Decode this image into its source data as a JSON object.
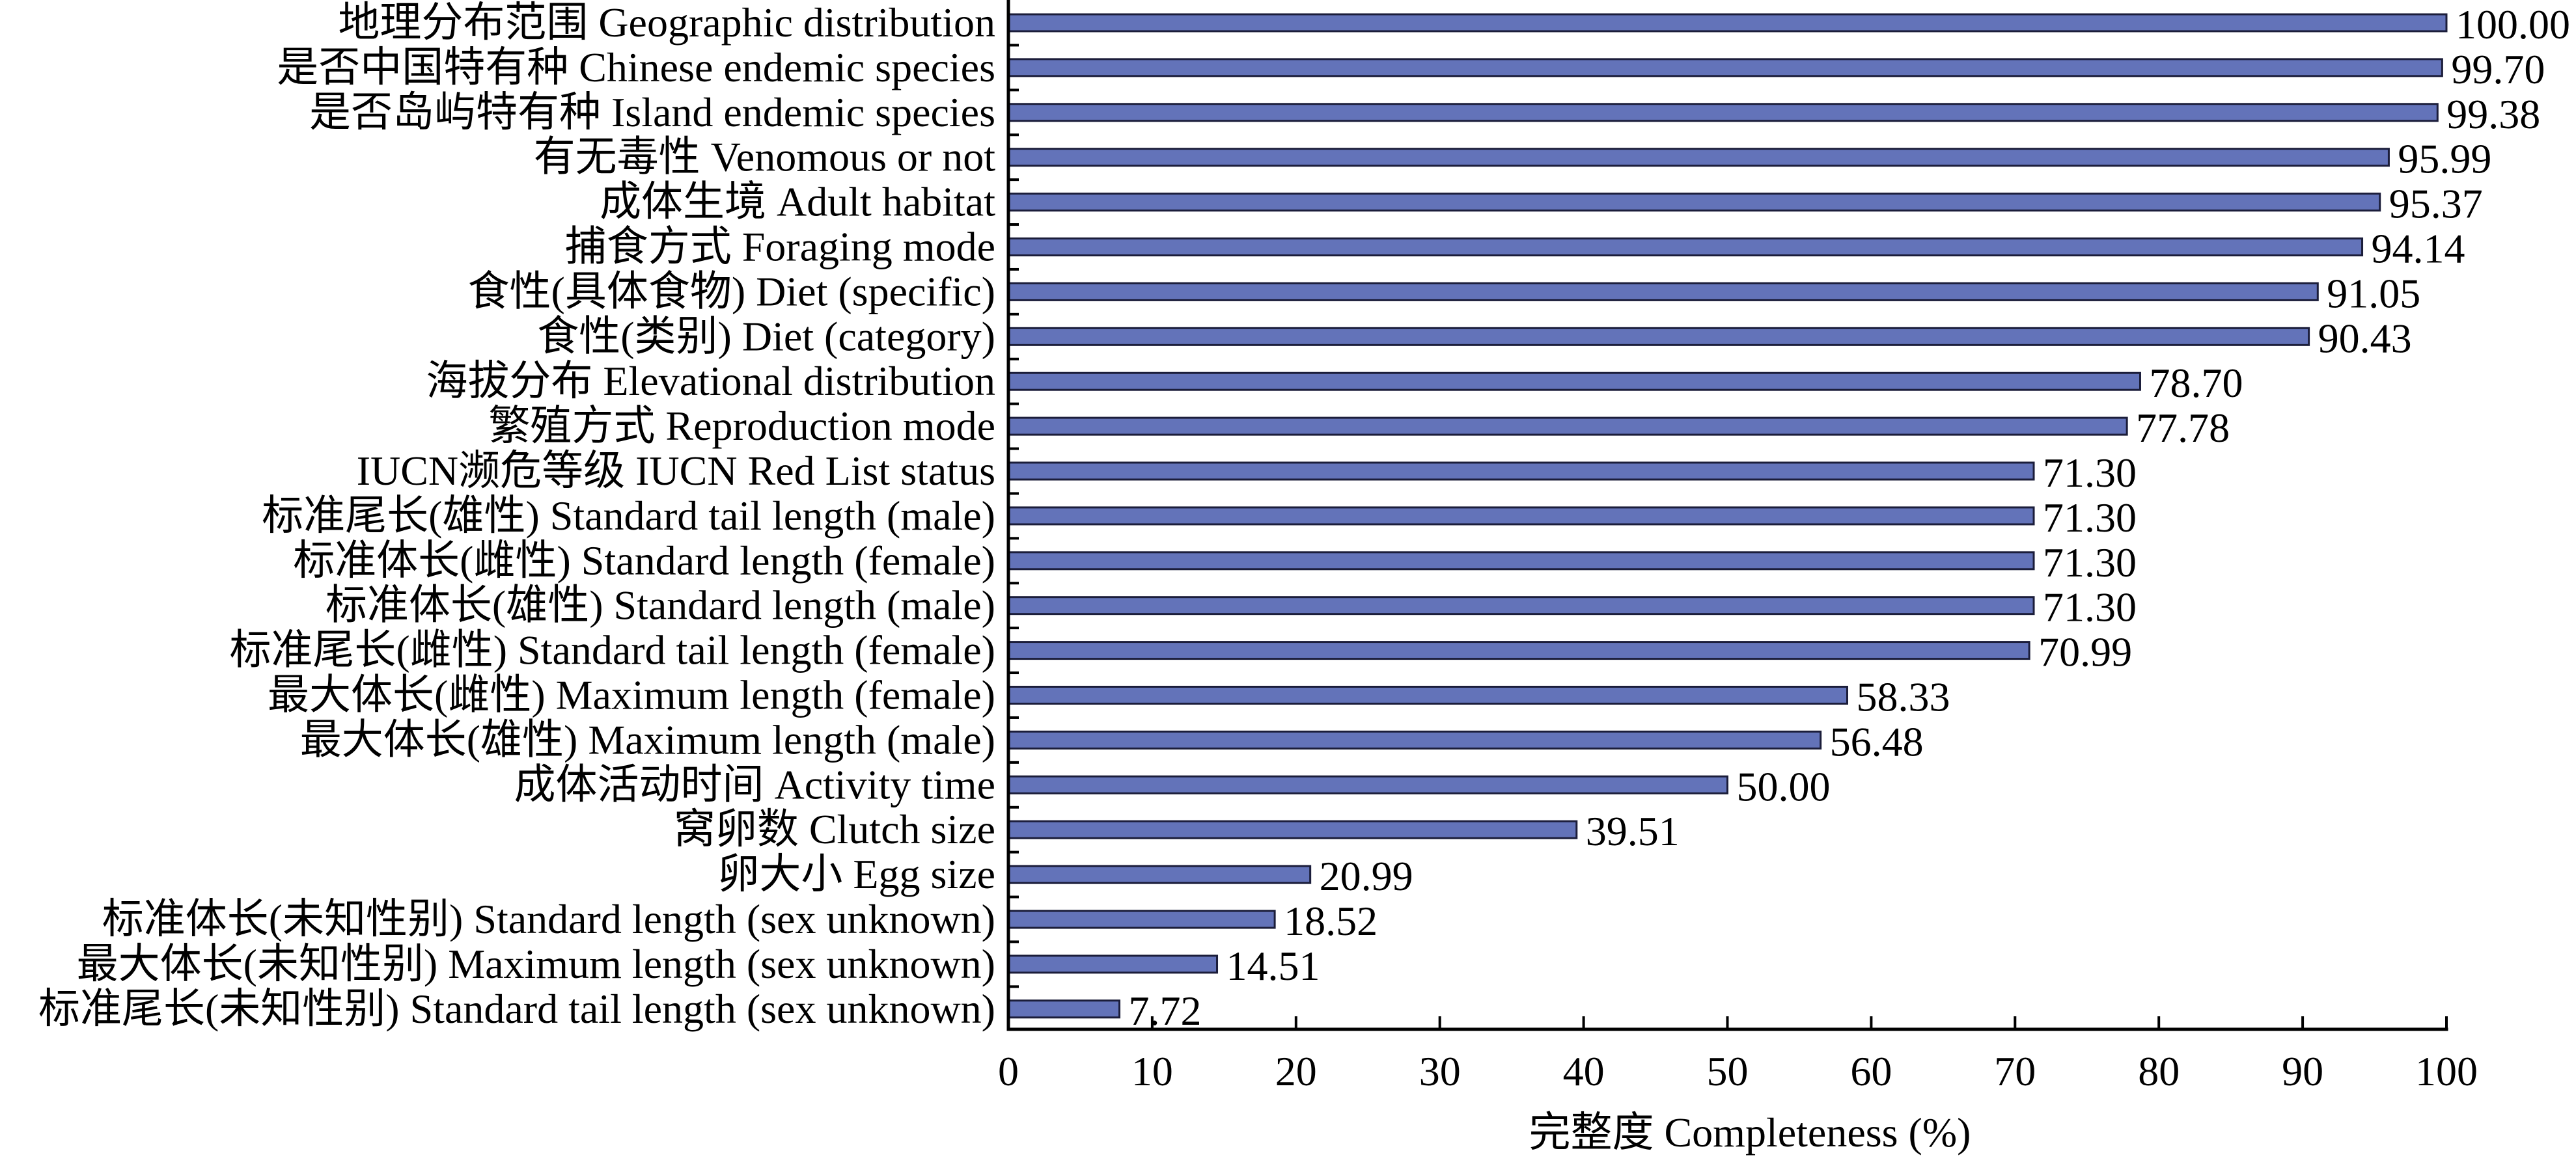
{
  "chart_data": {
    "type": "bar",
    "orientation": "horizontal",
    "categories": [
      "地理分布范围 Geographic distribution",
      "是否中国特有种 Chinese endemic species",
      "是否岛屿特有种 Island endemic species",
      "有无毒性 Venomous or not",
      "成体生境 Adult habitat",
      "捕食方式 Foraging mode",
      "食性(具体食物) Diet (specific)",
      "食性(类别) Diet (category)",
      "海拔分布 Elevational distribution",
      "繁殖方式 Reproduction mode",
      "IUCN濒危等级 IUCN Red List status",
      "标准尾长(雄性) Standard tail length (male)",
      "标准体长(雌性) Standard length (female)",
      "标准体长(雄性) Standard length (male)",
      "标准尾长(雌性) Standard tail length (female)",
      "最大体长(雌性) Maximum length (female)",
      "最大体长(雄性) Maximum length (male)",
      "成体活动时间 Activity time",
      "窝卵数 Clutch size",
      "卵大小 Egg size",
      "标准体长(未知性别) Standard length (sex unknown)",
      "最大体长(未知性别) Maximum length (sex unknown)",
      "标准尾长(未知性别) Standard tail length (sex unknown)"
    ],
    "values": [
      100.0,
      99.7,
      99.38,
      95.99,
      95.37,
      94.14,
      91.05,
      90.43,
      78.7,
      77.78,
      71.3,
      71.3,
      71.3,
      71.3,
      70.99,
      58.33,
      56.48,
      50.0,
      39.51,
      20.99,
      18.52,
      14.51,
      7.72
    ],
    "data_labels": [
      "100.00",
      "99.70",
      "99.38",
      "95.99",
      "95.37",
      "94.14",
      "91.05",
      "90.43",
      "78.70",
      "77.78",
      "71.30",
      "71.30",
      "71.30",
      "71.30",
      "70.99",
      "58.33",
      "56.48",
      "50.00",
      "39.51",
      "20.99",
      "18.52",
      "14.51",
      "7.72"
    ],
    "xlabel": "完整度 Completeness (%)",
    "xlim": [
      0,
      100
    ],
    "xticks": [
      0,
      10,
      20,
      30,
      40,
      50,
      60,
      70,
      80,
      90,
      100
    ],
    "grid": false,
    "legend": "none",
    "colors": {
      "bar_fill": "#6373b9",
      "bar_edge": "#1b1d3a",
      "axis": "#000000",
      "text": "#000000"
    }
  }
}
